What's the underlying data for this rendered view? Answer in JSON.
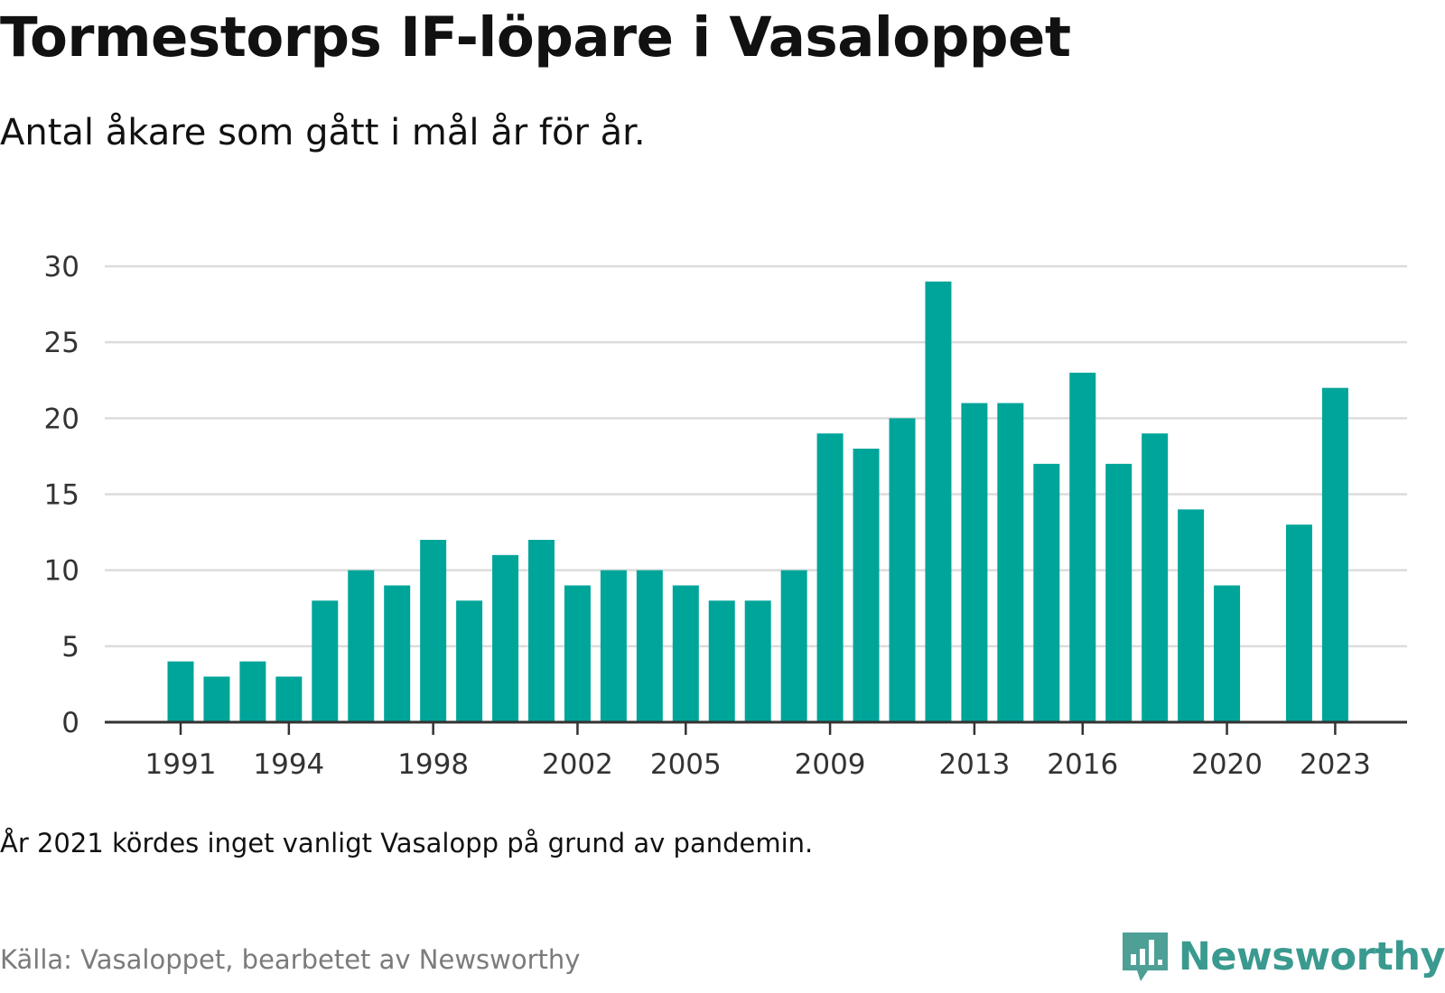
{
  "title": "Tormestorps IF-löpare i Vasaloppet",
  "subtitle": "Antal åkare som gått i mål år för år.",
  "note": "År 2021 kördes inget vanligt Vasalopp på grund av pandemin.",
  "source": "Källa: Vasaloppet, bearbetet av Newsworthy",
  "brand": {
    "name": "Newsworthy",
    "icon": "newsworthy-logo-icon",
    "color": "#3a9a8f"
  },
  "colors": {
    "bar": "#00a59a",
    "grid": "#dcdcdc",
    "axis": "#333333"
  },
  "chart_data": {
    "type": "bar",
    "categories": [
      "1991",
      "1992",
      "1993",
      "1994",
      "1995",
      "1996",
      "1997",
      "1998",
      "1999",
      "2000",
      "2001",
      "2002",
      "2003",
      "2004",
      "2005",
      "2006",
      "2007",
      "2008",
      "2009",
      "2010",
      "2011",
      "2012",
      "2013",
      "2014",
      "2015",
      "2016",
      "2017",
      "2018",
      "2019",
      "2020",
      "2021",
      "2022",
      "2023"
    ],
    "values": [
      4,
      3,
      4,
      3,
      8,
      10,
      9,
      12,
      8,
      11,
      12,
      9,
      10,
      10,
      9,
      8,
      8,
      10,
      19,
      18,
      20,
      29,
      21,
      21,
      17,
      23,
      17,
      19,
      14,
      9,
      null,
      13,
      22
    ],
    "x_tick_labels": [
      "1991",
      "1994",
      "1998",
      "2002",
      "2005",
      "2009",
      "2013",
      "2016",
      "2020",
      "2023"
    ],
    "y_ticks": [
      0,
      5,
      10,
      15,
      20,
      25,
      30
    ],
    "ylim": [
      0,
      30
    ],
    "xlabel": "",
    "ylabel": "",
    "grid": true
  }
}
